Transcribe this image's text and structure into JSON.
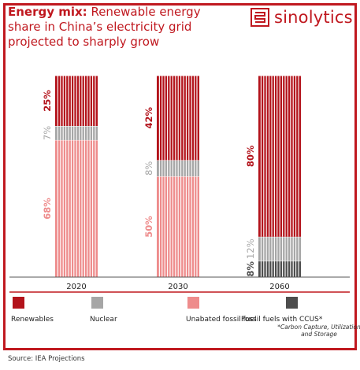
{
  "header": {
    "title_bold": "Energy mix:",
    "title_rest": " Renewable energy share in China’s electricity grid projected to sharply grow"
  },
  "brand": {
    "name": "sinolytics",
    "icon": "sinolytics-logo-icon"
  },
  "source": "Source: IEA Projections",
  "colors": {
    "renewables": "#b3131b",
    "nuclear": "#a6a6a6",
    "fossil": "#ee8c8c",
    "ccus": "#4d4d4d",
    "accent": "#c0181f"
  },
  "chart_data": {
    "type": "bar",
    "stacked": true,
    "categories": [
      "2020",
      "2030",
      "2060"
    ],
    "ylim": [
      0,
      100
    ],
    "series": [
      {
        "name": "Renewables",
        "values": [
          25,
          42,
          80
        ],
        "labels": [
          "25%",
          "42%",
          "80%"
        ]
      },
      {
        "name": "Nuclear",
        "values": [
          7,
          8,
          12
        ],
        "labels": [
          "7%",
          "8%",
          "12%"
        ]
      },
      {
        "name": "Unabated fossil fuel",
        "values": [
          68,
          50,
          0
        ],
        "labels": [
          "68%",
          "50%",
          ""
        ]
      },
      {
        "name": "Fossil fuels with CCUS*",
        "values": [
          0,
          0,
          8
        ],
        "labels": [
          "",
          "",
          "8%"
        ]
      }
    ],
    "footnote": "*Carbon Capture, Utilization and Storage"
  }
}
